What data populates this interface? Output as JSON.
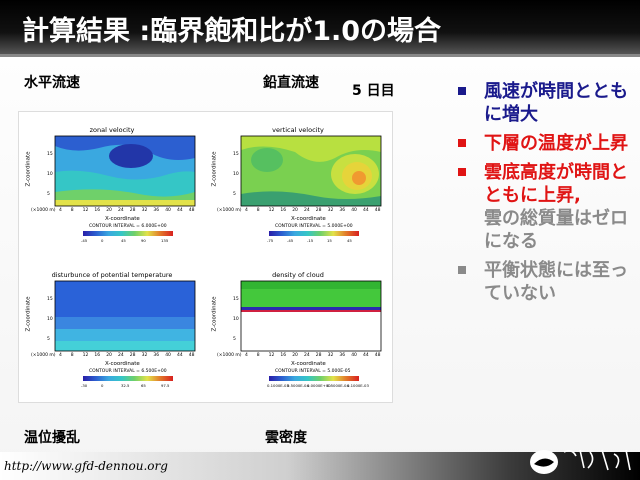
{
  "title": "計算結果 :臨界飽和比が1.0の場合",
  "labels": {
    "top_left": "水平流速",
    "top_right": "鉛直流速",
    "day": "5 日目",
    "bottom_left": "温位擾乱",
    "bottom_right": "雲密度"
  },
  "panels": [
    {
      "title": "zonal velocity",
      "ylabel": "Z-coordinate",
      "xlabel": "X-coordinate",
      "unit": "(×1000 m)",
      "contour": "CONTOUR INTERVAL = 6.000E+00",
      "cb_ticks": [
        "-45",
        "0",
        "45",
        "90",
        "135"
      ]
    },
    {
      "title": "vertical velocity",
      "ylabel": "Z-coordinate",
      "xlabel": "X-coordinate",
      "unit": "(×1000 m)",
      "contour": "CONTOUR INTERVAL = 5.000E+00",
      "cb_ticks": [
        "-75",
        "-45",
        "-15",
        "15",
        "45"
      ]
    },
    {
      "title": "disturbunce of potential temperature",
      "ylabel": "Z-coordinate",
      "xlabel": "X-coordinate",
      "unit": "(×1000 m)",
      "contour": "CONTOUR INTERVAL = 6.500E+00",
      "cb_ticks": [
        "-30",
        "0",
        "32.5",
        "65",
        "97.5"
      ]
    },
    {
      "title": "density of cloud",
      "ylabel": "Z-coordinate",
      "xlabel": "X-coordinate",
      "unit": "(×1000 m)",
      "contour": "CONTOUR INTERVAL = 5.000E-05",
      "cb_ticks": [
        "0.1000E-03",
        "0.5000E-04",
        "0.0000E+00",
        "0.5000E-04",
        "0.1000E-03"
      ]
    }
  ],
  "x_ticks": [
    "4",
    "8",
    "12",
    "16",
    "20",
    "24",
    "28",
    "32",
    "36",
    "40",
    "44",
    "48"
  ],
  "y_ticks": [
    "5",
    "10",
    "15"
  ],
  "bullets": [
    {
      "text": "風速が時間とともに増大",
      "color": "#1a1a8c",
      "marker": "#1a1a8c"
    },
    {
      "text": "下層の温度が上昇",
      "color": "#e01414",
      "marker": "#e01414"
    },
    {
      "text": "雲底高度が時間とともに上昇,",
      "color": "#e01414",
      "marker": "#e01414"
    },
    {
      "text": "雲の総質量はゼロになる",
      "color": "#8a8a8a",
      "marker": null
    },
    {
      "text": "平衡状態には至っていない",
      "color": "#8a8a8a",
      "marker": "#8a8a8a"
    }
  ],
  "footer": {
    "url": "http://www.gfd-dennou.org",
    "logo_icon": "dennou-logo-icon"
  }
}
